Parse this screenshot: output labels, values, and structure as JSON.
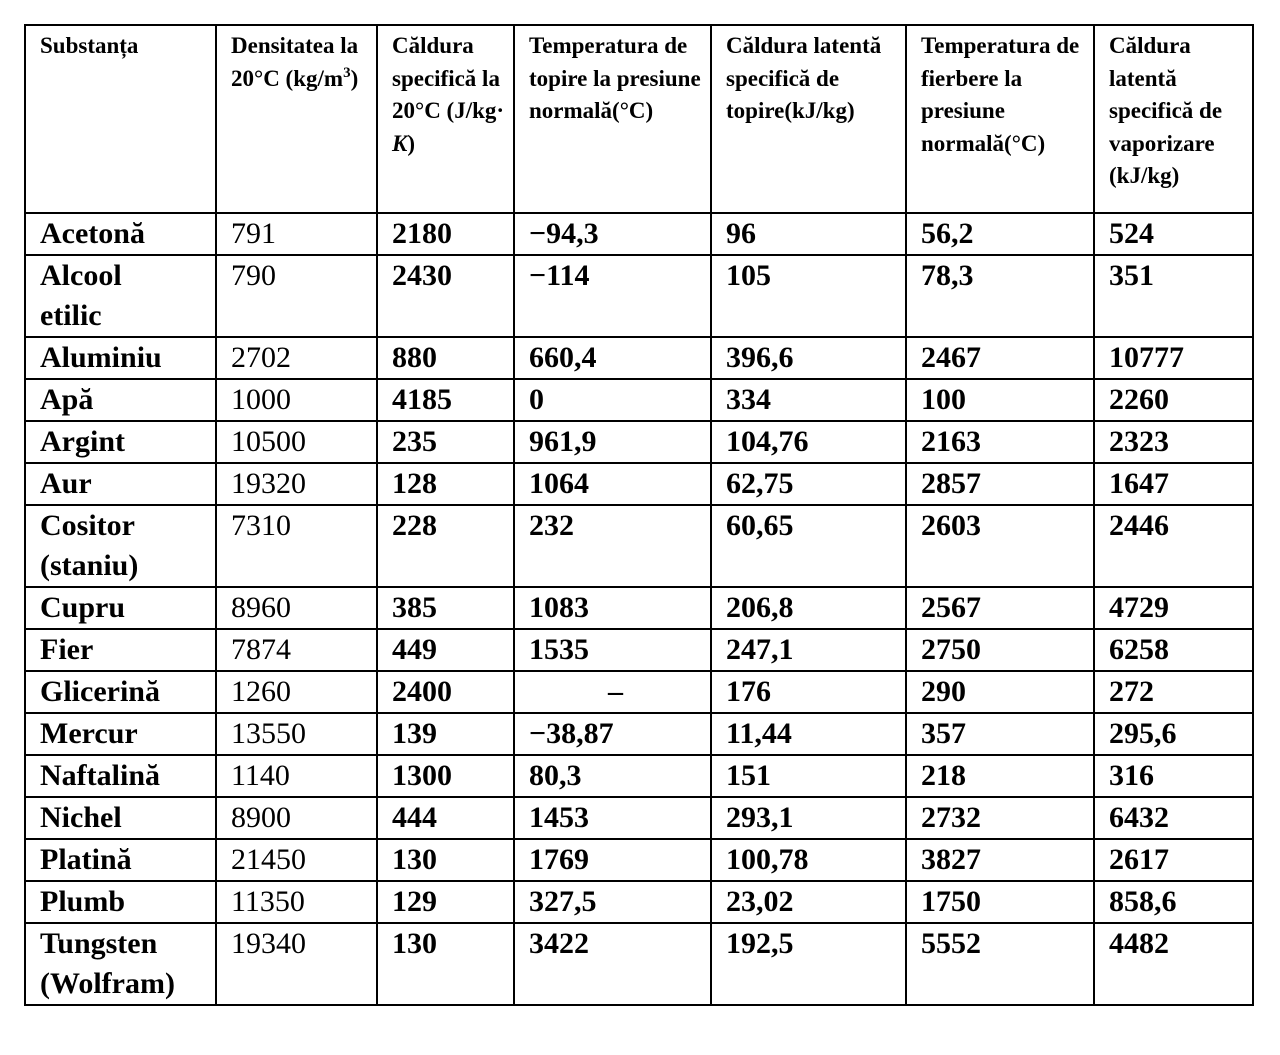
{
  "table": {
    "headers": {
      "substance": "Substanța",
      "density": "Densitatea la 20°C (kg/m",
      "density_exp": "3",
      "density_end": ")",
      "specific_heat": "Căldura specifică la 20°C (J/kg·",
      "specific_heat_unit": " K",
      "specific_heat_end": ")",
      "melting_temp": "Temperatura de topire la presiune normală(°C)",
      "latent_melting": "Căldura latentă specifică de topire(kJ/kg)",
      "boiling_temp": "Temperatura de fierbere la presiune normală(°C)",
      "latent_vaporization": "Căldura latentă specifică de vaporizare (kJ/kg)"
    },
    "rows": [
      {
        "name": "Acetonă",
        "density": "791",
        "specific_heat": "2180",
        "melting_temp": "−94,3",
        "latent_melting": "96",
        "boiling_temp": "56,2",
        "latent_vaporization": "524"
      },
      {
        "name": "Alcool etilic",
        "density": "790",
        "specific_heat": "2430",
        "melting_temp": "−114",
        "latent_melting": "105",
        "boiling_temp": "78,3",
        "latent_vaporization": "351"
      },
      {
        "name": "Aluminiu",
        "density": "2702",
        "specific_heat": "880",
        "melting_temp": "660,4",
        "latent_melting": "396,6",
        "boiling_temp": "2467",
        "latent_vaporization": "10777"
      },
      {
        "name": "Apă",
        "density": "1000",
        "specific_heat": "4185",
        "melting_temp": "0",
        "latent_melting": "334",
        "boiling_temp": "100",
        "latent_vaporization": "2260"
      },
      {
        "name": "Argint",
        "density": "10500",
        "specific_heat": "235",
        "melting_temp": "961,9",
        "latent_melting": "104,76",
        "boiling_temp": "2163",
        "latent_vaporization": "2323"
      },
      {
        "name": "Aur",
        "density": "19320",
        "specific_heat": "128",
        "melting_temp": "1064",
        "latent_melting": "62,75",
        "boiling_temp": "2857",
        "latent_vaporization": "1647"
      },
      {
        "name": "Cositor (staniu)",
        "density": "7310",
        "specific_heat": "228",
        "melting_temp": "232",
        "latent_melting": "60,65",
        "boiling_temp": "2603",
        "latent_vaporization": "2446"
      },
      {
        "name": "Cupru",
        "density": "8960",
        "specific_heat": "385",
        "melting_temp": "1083",
        "latent_melting": "206,8",
        "boiling_temp": "2567",
        "latent_vaporization": "4729"
      },
      {
        "name": "Fier",
        "density": "7874",
        "specific_heat": "449",
        "melting_temp": "1535",
        "latent_melting": "247,1",
        "boiling_temp": "2750",
        "latent_vaporization": "6258"
      },
      {
        "name": "Glicerină",
        "density": "1260",
        "specific_heat": "2400",
        "melting_temp": "–",
        "latent_melting": "176",
        "boiling_temp": "290",
        "latent_vaporization": "272"
      },
      {
        "name": "Mercur",
        "density": "13550",
        "specific_heat": "139",
        "melting_temp": "−38,87",
        "latent_melting": "11,44",
        "boiling_temp": "357",
        "latent_vaporization": "295,6"
      },
      {
        "name": "Naftalină",
        "density": "1140",
        "specific_heat": "1300",
        "melting_temp": "80,3",
        "latent_melting": "151",
        "boiling_temp": "218",
        "latent_vaporization": "316"
      },
      {
        "name": "Nichel",
        "density": "8900",
        "specific_heat": "444",
        "melting_temp": "1453",
        "latent_melting": "293,1",
        "boiling_temp": "2732",
        "latent_vaporization": "6432"
      },
      {
        "name": "Platină",
        "density": "21450",
        "specific_heat": "130",
        "melting_temp": "1769",
        "latent_melting": "100,78",
        "boiling_temp": "3827",
        "latent_vaporization": "2617"
      },
      {
        "name": "Plumb",
        "density": "11350",
        "specific_heat": "129",
        "melting_temp": "327,5",
        "latent_melting": "23,02",
        "boiling_temp": "1750",
        "latent_vaporization": "858,6"
      },
      {
        "name": "Tungsten (Wolfram)",
        "density": "19340",
        "specific_heat": "130",
        "melting_temp": "3422",
        "latent_melting": "192,5",
        "boiling_temp": "5552",
        "latent_vaporization": "4482"
      }
    ]
  }
}
